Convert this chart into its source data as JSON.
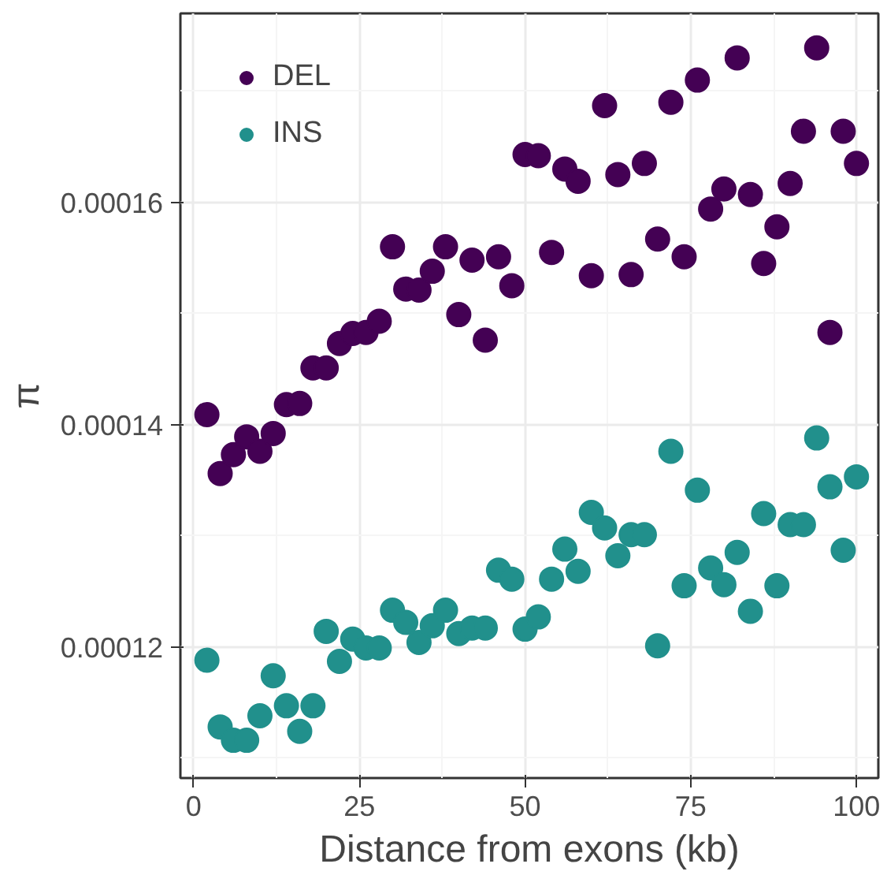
{
  "chart_data": {
    "type": "scatter",
    "xlabel": "Distance from exons (kb)",
    "ylabel": "π",
    "x": [
      2,
      4,
      6,
      8,
      10,
      12,
      14,
      16,
      18,
      20,
      22,
      24,
      26,
      28,
      30,
      32,
      34,
      36,
      38,
      40,
      42,
      44,
      46,
      48,
      50,
      52,
      54,
      56,
      58,
      60,
      62,
      64,
      66,
      68,
      70,
      72,
      74,
      76,
      78,
      80,
      82,
      84,
      86,
      88,
      90,
      92,
      94,
      96,
      98,
      100
    ],
    "series": [
      {
        "name": "DEL",
        "color": "#440154",
        "values": [
          0.0001409,
          0.0001356,
          0.0001373,
          0.0001389,
          0.0001376,
          0.0001392,
          0.0001418,
          0.0001419,
          0.0001451,
          0.0001451,
          0.0001473,
          0.0001482,
          0.0001483,
          0.0001493,
          0.000156,
          0.0001522,
          0.0001521,
          0.0001538,
          0.000156,
          0.0001499,
          0.0001548,
          0.0001476,
          0.0001551,
          0.0001525,
          0.0001643,
          0.0001642,
          0.0001555,
          0.000163,
          0.0001619,
          0.0001534,
          0.0001687,
          0.0001625,
          0.0001535,
          0.0001635,
          0.0001567,
          0.000169,
          0.0001551,
          0.000171,
          0.0001594,
          0.0001612,
          0.000173,
          0.0001607,
          0.0001545,
          0.0001578,
          0.0001617,
          0.0001664,
          0.0001739,
          0.0001483,
          0.0001664,
          0.0001635
        ]
      },
      {
        "name": "INS",
        "color": "#21908c",
        "values": [
          0.0001188,
          0.0001128,
          0.0001116,
          0.0001116,
          0.0001138,
          0.0001174,
          0.0001147,
          0.0001124,
          0.0001147,
          0.0001214,
          0.0001187,
          0.0001207,
          0.0001199,
          0.0001199,
          0.0001233,
          0.0001222,
          0.0001204,
          0.0001219,
          0.0001233,
          0.0001212,
          0.0001217,
          0.0001217,
          0.0001269,
          0.0001261,
          0.0001216,
          0.0001227,
          0.0001261,
          0.0001288,
          0.0001268,
          0.0001321,
          0.0001307,
          0.0001282,
          0.0001301,
          0.0001301,
          0.0001201,
          0.0001376,
          0.0001255,
          0.0001341,
          0.0001271,
          0.0001256,
          0.0001285,
          0.0001232,
          0.000132,
          0.0001255,
          0.000131,
          0.000131,
          0.0001388,
          0.0001344,
          0.0001287,
          0.0001353
        ]
      }
    ],
    "xlim": [
      -2,
      103.3
    ],
    "ylim": [
      0.0001082,
      0.000177
    ],
    "xticks": [
      0,
      25,
      50,
      75,
      100
    ],
    "yticks": [
      {
        "value": 0.00012,
        "label": "0.00012"
      },
      {
        "value": 0.00014,
        "label": "0.00014"
      },
      {
        "value": 0.00016,
        "label": "0.00016"
      }
    ],
    "grid": true,
    "legend": "top left",
    "marker": "circle"
  }
}
